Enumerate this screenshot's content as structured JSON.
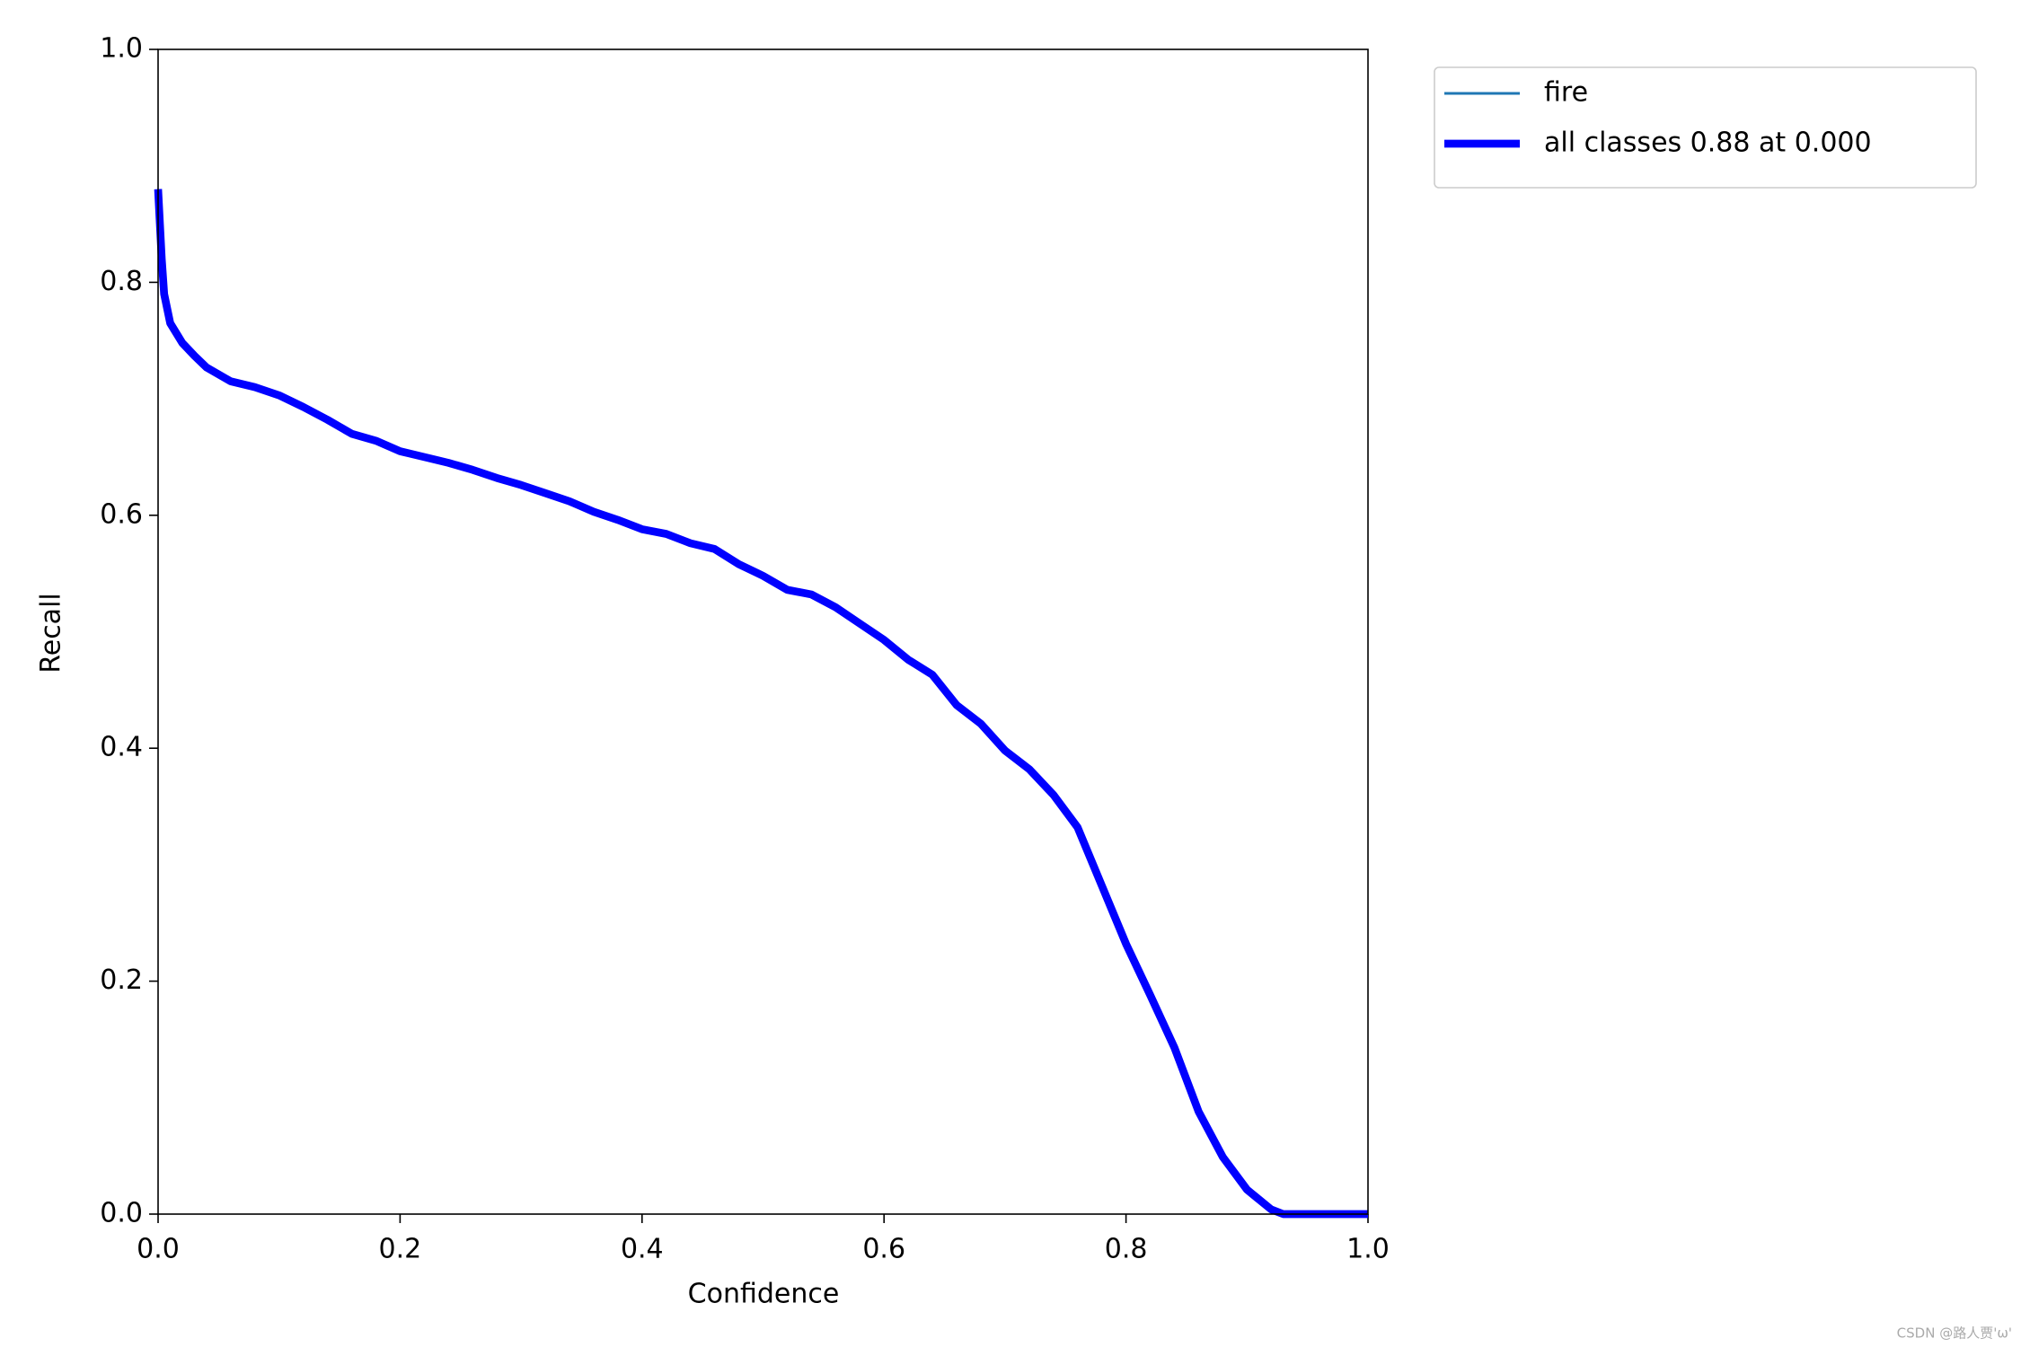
{
  "chart_data": {
    "type": "line",
    "xlabel": "Confidence",
    "ylabel": "Recall",
    "xlim": [
      0,
      1
    ],
    "ylim": [
      0,
      1
    ],
    "xticks": [
      {
        "value": 0,
        "label": "0.0"
      },
      0.2,
      0.4,
      0.6,
      0.8,
      {
        "value": 1,
        "label": "1.0"
      }
    ],
    "yticks": [
      {
        "value": 0,
        "label": "0.0"
      },
      0.2,
      0.4,
      0.6,
      0.8,
      {
        "value": 1,
        "label": "1.0"
      }
    ],
    "grid": false,
    "legend": "outside upper right",
    "x": [
      0,
      0.003,
      0.005,
      0.01,
      0.02,
      0.03,
      0.04,
      0.06,
      0.08,
      0.1,
      0.12,
      0.14,
      0.16,
      0.18,
      0.2,
      0.22,
      0.24,
      0.26,
      0.28,
      0.3,
      0.32,
      0.34,
      0.36,
      0.38,
      0.4,
      0.42,
      0.44,
      0.46,
      0.48,
      0.5,
      0.52,
      0.54,
      0.56,
      0.58,
      0.6,
      0.62,
      0.64,
      0.66,
      0.68,
      0.7,
      0.72,
      0.74,
      0.76,
      0.78,
      0.8,
      0.82,
      0.84,
      0.86,
      0.88,
      0.9,
      0.92,
      0.93,
      1
    ],
    "series": [
      {
        "name": "fire",
        "color": "#1f77b4",
        "linewidth": 1,
        "values": [
          0.88,
          0.82,
          0.79,
          0.765,
          0.748,
          0.737,
          0.727,
          0.715,
          0.71,
          0.703,
          0.693,
          0.682,
          0.67,
          0.664,
          0.655,
          0.65,
          0.645,
          0.639,
          0.632,
          0.626,
          0.619,
          0.612,
          0.603,
          0.596,
          0.588,
          0.584,
          0.576,
          0.571,
          0.558,
          0.548,
          0.536,
          0.532,
          0.521,
          0.507,
          0.493,
          0.476,
          0.463,
          0.437,
          0.421,
          0.398,
          0.382,
          0.36,
          0.332,
          0.282,
          0.232,
          0.188,
          0.143,
          0.088,
          0.049,
          0.021,
          0.004,
          0,
          0
        ]
      },
      {
        "name": "all classes 0.88 at 0.000",
        "color": "#0000ff",
        "linewidth": 3,
        "values": [
          0.88,
          0.82,
          0.79,
          0.765,
          0.748,
          0.737,
          0.727,
          0.715,
          0.71,
          0.703,
          0.693,
          0.682,
          0.67,
          0.664,
          0.655,
          0.65,
          0.645,
          0.639,
          0.632,
          0.626,
          0.619,
          0.612,
          0.603,
          0.596,
          0.588,
          0.584,
          0.576,
          0.571,
          0.558,
          0.548,
          0.536,
          0.532,
          0.521,
          0.507,
          0.493,
          0.476,
          0.463,
          0.437,
          0.421,
          0.398,
          0.382,
          0.36,
          0.332,
          0.282,
          0.232,
          0.188,
          0.143,
          0.088,
          0.049,
          0.021,
          0.004,
          0,
          0
        ]
      }
    ],
    "watermark": "CSDN @路人贾'ω'"
  }
}
